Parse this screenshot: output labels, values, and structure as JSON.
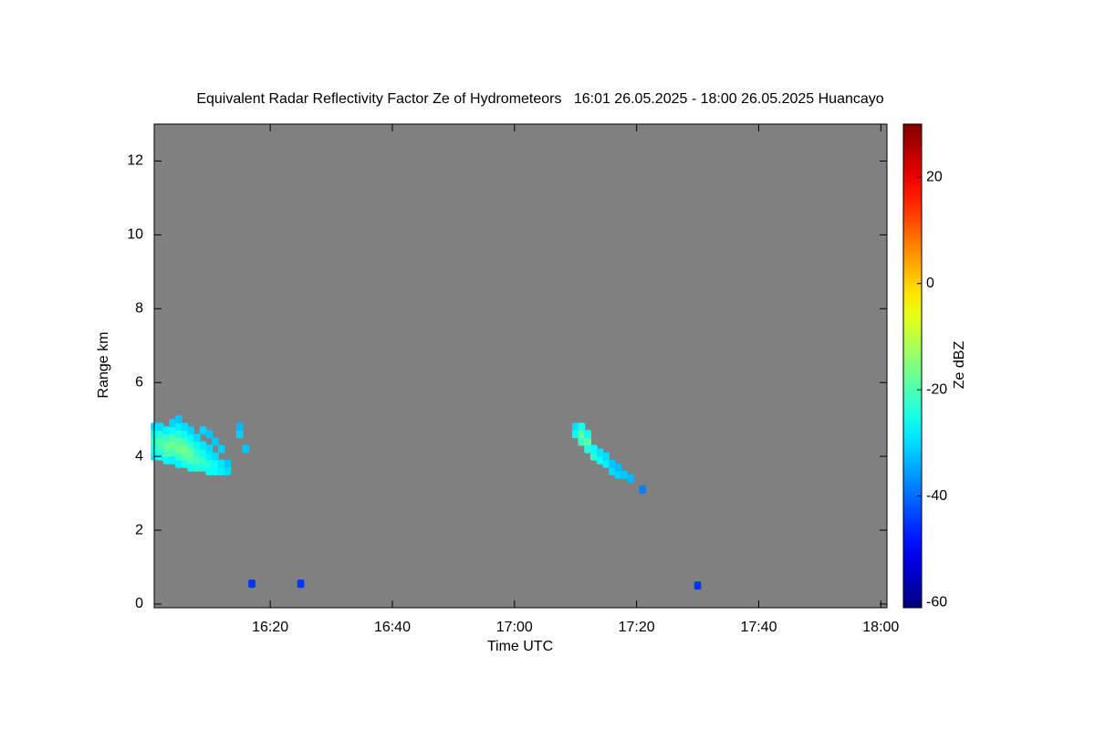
{
  "chart_data": {
    "type": "heatmap",
    "title": "Equivalent Radar Reflectivity Factor Ze of Hydrometeors   16:01 26.05.2025 - 18:00 26.05.2025 Huancayo",
    "x_label": "Time UTC",
    "y_label": "Range km",
    "colorbar_label": "Ze dBZ",
    "colormap": "jet",
    "background": "#808080",
    "xlim": [
      961,
      1081
    ],
    "xticks": [
      {
        "value": 980,
        "label": "16:20"
      },
      {
        "value": 1000,
        "label": "16:40"
      },
      {
        "value": 1020,
        "label": "17:00"
      },
      {
        "value": 1040,
        "label": "17:20"
      },
      {
        "value": 1060,
        "label": "17:40"
      },
      {
        "value": 1080,
        "label": "18:00"
      }
    ],
    "ylim": [
      -0.1,
      13
    ],
    "yticks": [
      0,
      2,
      4,
      6,
      8,
      10,
      12
    ],
    "clim": [
      -61,
      30
    ],
    "cticks": [
      -60,
      -40,
      -20,
      0,
      20
    ],
    "x": [
      961,
      961,
      961,
      961,
      961,
      962,
      962,
      962,
      962,
      962,
      963,
      963,
      963,
      963,
      963,
      964,
      964,
      964,
      964,
      964,
      964,
      965,
      965,
      965,
      965,
      965,
      965,
      965,
      966,
      966,
      966,
      966,
      966,
      966,
      967,
      967,
      967,
      967,
      967,
      967,
      968,
      968,
      968,
      968,
      968,
      969,
      969,
      969,
      969,
      969,
      970,
      970,
      970,
      970,
      970,
      971,
      971,
      971,
      971,
      972,
      972,
      972,
      973,
      973,
      975,
      975,
      976,
      977,
      985,
      1030,
      1030,
      1031,
      1031,
      1031,
      1032,
      1032,
      1032,
      1033,
      1033,
      1034,
      1034,
      1035,
      1035,
      1036,
      1036,
      1037,
      1037,
      1038,
      1039,
      1041,
      1050
    ],
    "y": [
      4.0,
      4.2,
      4.4,
      4.6,
      4.8,
      4.0,
      4.2,
      4.4,
      4.6,
      4.8,
      3.9,
      4.1,
      4.3,
      4.5,
      4.7,
      3.9,
      4.1,
      4.3,
      4.5,
      4.7,
      4.9,
      3.8,
      4.0,
      4.2,
      4.4,
      4.6,
      4.8,
      5.0,
      3.8,
      4.0,
      4.2,
      4.4,
      4.6,
      4.8,
      3.7,
      3.9,
      4.1,
      4.3,
      4.5,
      4.7,
      3.7,
      3.9,
      4.1,
      4.3,
      4.5,
      3.7,
      3.9,
      4.1,
      4.3,
      4.7,
      3.6,
      3.8,
      4.0,
      4.2,
      4.6,
      3.6,
      3.8,
      4.0,
      4.4,
      3.6,
      3.8,
      4.2,
      3.6,
      3.8,
      4.6,
      4.8,
      4.2,
      0.55,
      0.55,
      4.8,
      4.6,
      4.4,
      4.6,
      4.8,
      4.2,
      4.4,
      4.6,
      4.0,
      4.2,
      3.9,
      4.1,
      3.8,
      4.0,
      3.6,
      3.8,
      3.5,
      3.7,
      3.5,
      3.4,
      3.1,
      0.5
    ],
    "values": [
      -28,
      -25,
      -22,
      -26,
      -30,
      -26,
      -22,
      -20,
      -24,
      -30,
      -27,
      -20,
      -18,
      -22,
      -28,
      -28,
      -21,
      -17,
      -20,
      -26,
      -31,
      -28,
      -22,
      -17,
      -19,
      -24,
      -28,
      -32,
      -25,
      -19,
      -16,
      -21,
      -26,
      -30,
      -26,
      -20,
      -18,
      -22,
      -27,
      -31,
      -24,
      -21,
      -23,
      -26,
      -30,
      -25,
      -22,
      -26,
      -29,
      -31,
      -26,
      -24,
      -28,
      -30,
      -32,
      -27,
      -26,
      -30,
      -32,
      -28,
      -29,
      -31,
      -30,
      -32,
      -31,
      -33,
      -32,
      -45,
      -45,
      -30,
      -27,
      -22,
      -18,
      -25,
      -24,
      -19,
      -26,
      -23,
      -26,
      -26,
      -29,
      -28,
      -30,
      -30,
      -32,
      -31,
      -33,
      -32,
      -33,
      -38,
      -45
    ]
  }
}
